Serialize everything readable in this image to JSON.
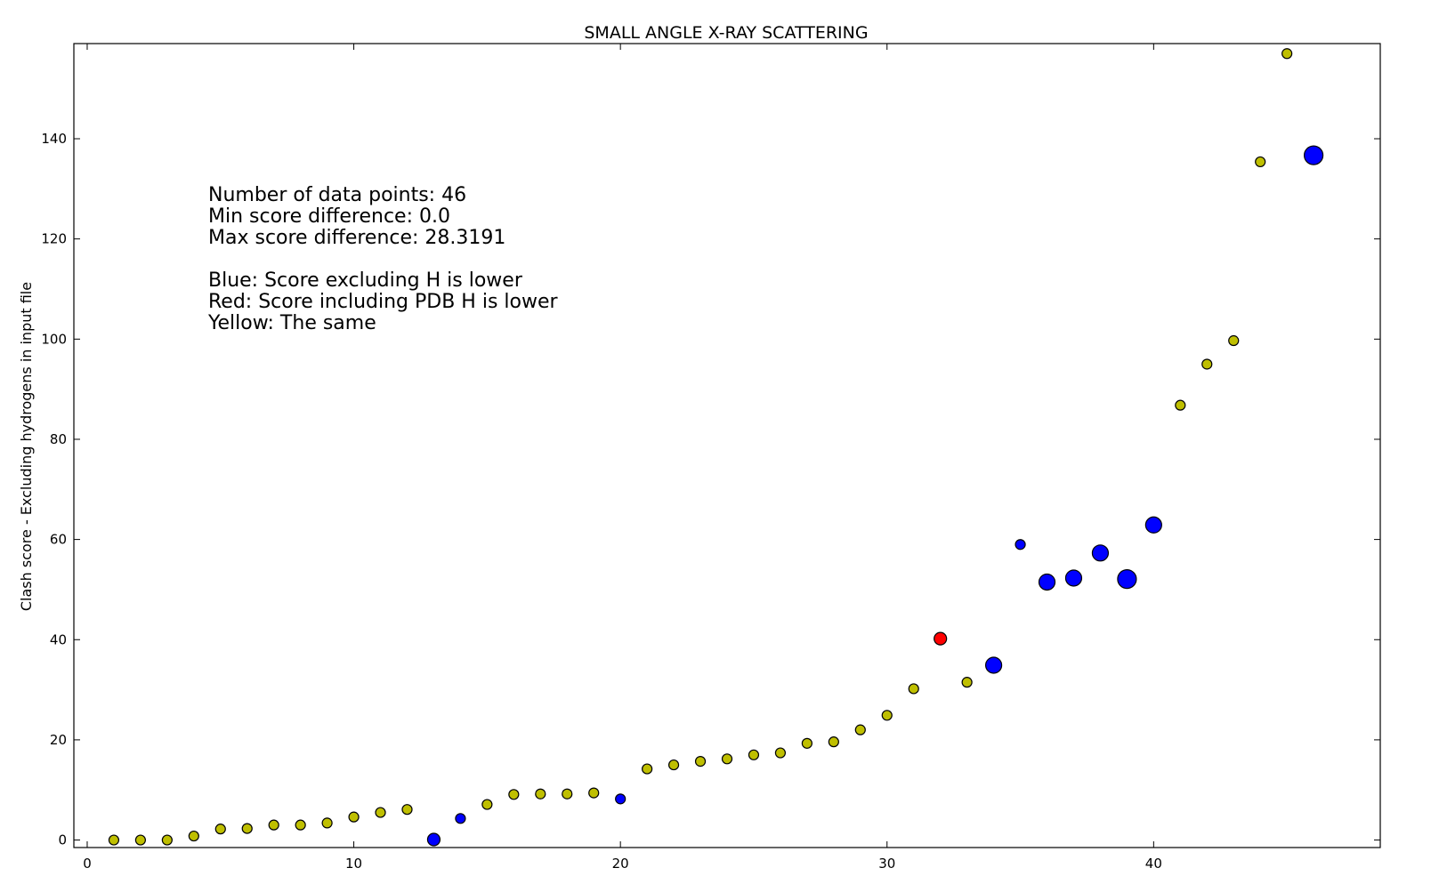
{
  "chart_data": {
    "type": "scatter",
    "title": "SMALL ANGLE X-RAY SCATTERING",
    "xlabel": "",
    "ylabel": "Clash score - Excluding hydrogens in input file",
    "xlim": [
      -0.5,
      48.5
    ],
    "ylim": [
      -1.5,
      159
    ],
    "x_ticks": [
      0,
      10,
      20,
      30,
      40
    ],
    "y_ticks": [
      0,
      20,
      40,
      60,
      80,
      100,
      120,
      140
    ],
    "grid": false,
    "colors": {
      "yellow": "#bfbf00",
      "blue": "#0000ff",
      "red": "#ff0000"
    },
    "annotations": [
      "Number of data points: 46",
      "Min score difference: 0.0",
      "Max score difference: 28.3191",
      "",
      "Blue: Score excluding H is lower",
      "Red: Score including PDB H is lower",
      "Yellow: The same"
    ],
    "points": [
      {
        "x": 1,
        "y": 0.0,
        "color": "yellow",
        "size": "small"
      },
      {
        "x": 2,
        "y": 0.0,
        "color": "yellow",
        "size": "small"
      },
      {
        "x": 3,
        "y": 0.0,
        "color": "yellow",
        "size": "small"
      },
      {
        "x": 4,
        "y": 0.8,
        "color": "yellow",
        "size": "small"
      },
      {
        "x": 5,
        "y": 2.2,
        "color": "yellow",
        "size": "small"
      },
      {
        "x": 6,
        "y": 2.3,
        "color": "yellow",
        "size": "small"
      },
      {
        "x": 7,
        "y": 3.0,
        "color": "yellow",
        "size": "small"
      },
      {
        "x": 8,
        "y": 3.0,
        "color": "yellow",
        "size": "small"
      },
      {
        "x": 9,
        "y": 3.4,
        "color": "yellow",
        "size": "small"
      },
      {
        "x": 10,
        "y": 4.6,
        "color": "yellow",
        "size": "small"
      },
      {
        "x": 11,
        "y": 5.5,
        "color": "yellow",
        "size": "small"
      },
      {
        "x": 12,
        "y": 6.1,
        "color": "yellow",
        "size": "small"
      },
      {
        "x": 13,
        "y": 0.1,
        "color": "blue",
        "size": "medium"
      },
      {
        "x": 14,
        "y": 4.3,
        "color": "blue",
        "size": "small"
      },
      {
        "x": 15,
        "y": 7.1,
        "color": "yellow",
        "size": "small"
      },
      {
        "x": 16,
        "y": 9.1,
        "color": "yellow",
        "size": "small"
      },
      {
        "x": 17,
        "y": 9.2,
        "color": "yellow",
        "size": "small"
      },
      {
        "x": 18,
        "y": 9.2,
        "color": "yellow",
        "size": "small"
      },
      {
        "x": 19,
        "y": 9.4,
        "color": "yellow",
        "size": "small"
      },
      {
        "x": 20,
        "y": 8.2,
        "color": "blue",
        "size": "small"
      },
      {
        "x": 21,
        "y": 14.2,
        "color": "yellow",
        "size": "small"
      },
      {
        "x": 22,
        "y": 15.0,
        "color": "yellow",
        "size": "small"
      },
      {
        "x": 23,
        "y": 15.7,
        "color": "yellow",
        "size": "small"
      },
      {
        "x": 24,
        "y": 16.2,
        "color": "yellow",
        "size": "small"
      },
      {
        "x": 25,
        "y": 17.0,
        "color": "yellow",
        "size": "small"
      },
      {
        "x": 26,
        "y": 17.4,
        "color": "yellow",
        "size": "small"
      },
      {
        "x": 27,
        "y": 19.3,
        "color": "yellow",
        "size": "small"
      },
      {
        "x": 28,
        "y": 19.6,
        "color": "yellow",
        "size": "small"
      },
      {
        "x": 29,
        "y": 22.0,
        "color": "yellow",
        "size": "small"
      },
      {
        "x": 30,
        "y": 24.9,
        "color": "yellow",
        "size": "small"
      },
      {
        "x": 31,
        "y": 30.2,
        "color": "yellow",
        "size": "small"
      },
      {
        "x": 32,
        "y": 40.2,
        "color": "red",
        "size": "medium"
      },
      {
        "x": 33,
        "y": 31.5,
        "color": "yellow",
        "size": "small"
      },
      {
        "x": 34,
        "y": 34.9,
        "color": "blue",
        "size": "large"
      },
      {
        "x": 35,
        "y": 59.0,
        "color": "blue",
        "size": "small"
      },
      {
        "x": 36,
        "y": 51.5,
        "color": "blue",
        "size": "large"
      },
      {
        "x": 37,
        "y": 52.3,
        "color": "blue",
        "size": "large"
      },
      {
        "x": 38,
        "y": 57.3,
        "color": "blue",
        "size": "large"
      },
      {
        "x": 39,
        "y": 52.1,
        "color": "blue",
        "size": "xlarge"
      },
      {
        "x": 40,
        "y": 62.9,
        "color": "blue",
        "size": "large"
      },
      {
        "x": 41,
        "y": 86.8,
        "color": "yellow",
        "size": "small"
      },
      {
        "x": 42,
        "y": 95.0,
        "color": "yellow",
        "size": "small"
      },
      {
        "x": 43,
        "y": 99.7,
        "color": "yellow",
        "size": "small"
      },
      {
        "x": 44,
        "y": 135.4,
        "color": "yellow",
        "size": "small"
      },
      {
        "x": 45,
        "y": 157.0,
        "color": "yellow",
        "size": "small"
      },
      {
        "x": 46,
        "y": 136.7,
        "color": "blue",
        "size": "xlarge"
      }
    ]
  }
}
